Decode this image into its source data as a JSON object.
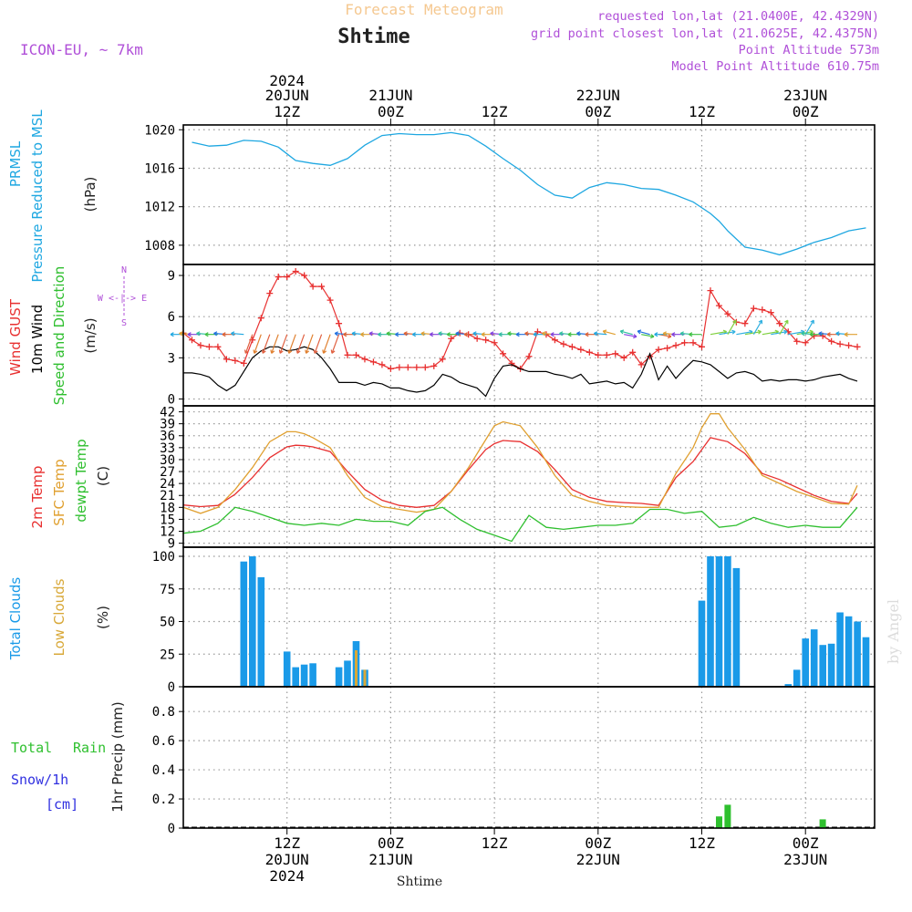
{
  "header": {
    "title": "Forecast Meteogram",
    "station": "Shtime",
    "model": "ICON-EU, ~ 7km",
    "requested": "requested lon,lat (21.0400E, 42.4329N)",
    "gridpoint": "grid point closest lon,lat (21.0625E, 42.4375N)",
    "point_alt": "Point Altitude 573m",
    "model_alt": "Model Point Altitude 610.75m",
    "credit": "by Angel",
    "footer": "Shtime"
  },
  "time_axis": {
    "top_labels": [
      {
        "l1": "2024",
        "l2": "20JUN",
        "l3": "12Z"
      },
      {
        "l1": "",
        "l2": "21JUN",
        "l3": "00Z"
      },
      {
        "l1": "",
        "l2": "",
        "l3": "12Z"
      },
      {
        "l1": "",
        "l2": "22JUN",
        "l3": "00Z"
      },
      {
        "l1": "",
        "l2": "",
        "l3": "12Z"
      },
      {
        "l1": "",
        "l2": "23JUN",
        "l3": "00Z"
      }
    ],
    "bottom_labels": [
      {
        "l1": "12Z",
        "l2": "20JUN",
        "l3": "2024"
      },
      {
        "l1": "00Z",
        "l2": "21JUN",
        "l3": ""
      },
      {
        "l1": "12Z",
        "l2": "",
        "l3": ""
      },
      {
        "l1": "00Z",
        "l2": "22JUN",
        "l3": ""
      },
      {
        "l1": "12Z",
        "l2": "",
        "l3": ""
      },
      {
        "l1": "00Z",
        "l2": "23JUN",
        "l3": ""
      }
    ],
    "tick_hours": [
      12,
      24,
      36,
      48,
      60,
      72
    ]
  },
  "panels": {
    "pressure": {
      "label1": "PRMSL",
      "label2": "Pressure Reduced to MSL",
      "unit": "(hPa)",
      "ticks": [
        "1008",
        "1012",
        "1016",
        "1020"
      ]
    },
    "wind": {
      "label_gust": "Wind GUST",
      "label_wind": "10m Wind",
      "label_speed": "Speed and Direction",
      "unit": "(m/s)",
      "ticks": [
        "0",
        "3",
        "6",
        "9"
      ],
      "compass": {
        "n": "N",
        "w": "W <-|-> E",
        "s": "S"
      }
    },
    "temp": {
      "label_t2m": "2m Temp",
      "label_sfc": "SFC Temp",
      "label_dew": "dewpt Temp",
      "unit": "(C)",
      "ticks": [
        "9",
        "12",
        "15",
        "18",
        "21",
        "24",
        "27",
        "30",
        "33",
        "36",
        "39",
        "42"
      ]
    },
    "clouds": {
      "label_total": "Total Clouds",
      "label_low": "Low Clouds",
      "unit": "(%)",
      "ticks": [
        "0",
        "25",
        "50",
        "75",
        "100"
      ]
    },
    "precip": {
      "label_total": "Total",
      "label_rain": "Rain",
      "label_snow": "Snow/1h",
      "label_cm": "[cm]",
      "label_axis": "1hr Precip (mm)",
      "ticks": [
        "0",
        "0.2",
        "0.4",
        "0.6",
        "0.8"
      ]
    }
  },
  "colors": {
    "pressure": "#1ea7e1",
    "gust": "#e83030",
    "wind": "#000000",
    "t2m": "#e83030",
    "sfc": "#e0a030",
    "dew": "#2fbf2f",
    "total_clouds": "#1a9ae8",
    "low_clouds": "#d8a838",
    "rain": "#2fc02f",
    "snow": "#3030e0",
    "title": "#f5c890",
    "magenta": "#b050d8"
  },
  "chart_data": [
    {
      "type": "line",
      "ylabel": "(hPa)",
      "ylim": [
        1006,
        1020.5
      ],
      "x_unit": "hours from 20JUN 00Z",
      "series": [
        {
          "name": "PRMSL",
          "x": [
            1,
            3,
            5,
            7,
            9,
            11,
            12,
            13,
            15,
            17,
            19,
            21,
            23,
            25,
            27,
            29,
            31,
            33,
            35,
            37,
            39,
            41,
            43,
            45,
            47,
            49,
            51,
            53,
            55,
            57,
            59,
            61,
            62,
            63,
            65,
            67,
            69,
            71,
            73,
            75,
            77,
            79
          ],
          "values": [
            1018.7,
            1018.3,
            1018.4,
            1018.9,
            1018.8,
            1018.2,
            1017.5,
            1016.8,
            1016.5,
            1016.3,
            1017.0,
            1018.4,
            1019.4,
            1019.6,
            1019.5,
            1019.5,
            1019.7,
            1019.4,
            1018.3,
            1017.0,
            1015.8,
            1014.3,
            1013.2,
            1012.9,
            1014.0,
            1014.5,
            1014.3,
            1013.9,
            1013.8,
            1013.2,
            1012.5,
            1011.3,
            1010.5,
            1009.5,
            1007.8,
            1007.5,
            1007.0,
            1007.6,
            1008.3,
            1008.8,
            1009.5,
            1009.8
          ]
        }
      ]
    },
    {
      "type": "line",
      "ylabel": "(m/s)",
      "ylim": [
        -0.5,
        9.8
      ],
      "series": [
        {
          "name": "Wind GUST",
          "x": [
            0,
            1,
            2,
            3,
            4,
            5,
            6,
            7,
            8,
            9,
            10,
            11,
            12,
            13,
            14,
            15,
            16,
            17,
            18,
            19,
            20,
            21,
            22,
            23,
            24,
            25,
            26,
            27,
            28,
            29,
            30,
            31,
            32,
            33,
            34,
            35,
            36,
            37,
            38,
            39,
            40,
            41,
            42,
            43,
            44,
            45,
            46,
            47,
            48,
            49,
            50,
            51,
            52,
            53,
            54,
            55,
            56,
            57,
            58,
            59,
            60,
            61,
            62,
            63,
            64,
            65,
            66,
            67,
            68,
            69,
            70,
            71,
            72,
            73,
            74,
            75,
            76,
            77,
            78
          ],
          "values": [
            4.8,
            4.3,
            3.9,
            3.8,
            3.8,
            2.9,
            2.8,
            2.6,
            4.3,
            5.9,
            7.7,
            8.9,
            8.9,
            9.3,
            9.0,
            8.2,
            8.2,
            7.2,
            5.5,
            3.2,
            3.2,
            2.9,
            2.7,
            2.5,
            2.2,
            2.3,
            2.3,
            2.3,
            2.3,
            2.4,
            2.9,
            4.4,
            4.8,
            4.7,
            4.4,
            4.3,
            4.1,
            3.3,
            2.6,
            2.2,
            3.1,
            4.9,
            4.7,
            4.3,
            4.0,
            3.8,
            3.6,
            3.4,
            3.2,
            3.2,
            3.3,
            3.0,
            3.4,
            2.5,
            3.1,
            3.6,
            3.7,
            3.9,
            4.1,
            4.1,
            3.8,
            7.9,
            6.8,
            6.2,
            5.6,
            5.5,
            6.6,
            6.5,
            6.3,
            5.5,
            4.9,
            4.2,
            4.1,
            4.6,
            4.6,
            4.2,
            4.0,
            3.9,
            3.8
          ]
        },
        {
          "name": "10m Wind",
          "x": [
            0,
            1,
            2,
            3,
            4,
            5,
            6,
            7,
            8,
            9,
            10,
            11,
            12,
            13,
            14,
            15,
            16,
            17,
            18,
            19,
            20,
            21,
            22,
            23,
            24,
            25,
            26,
            27,
            28,
            29,
            30,
            31,
            32,
            33,
            34,
            35,
            36,
            37,
            38,
            39,
            40,
            41,
            42,
            43,
            44,
            45,
            46,
            47,
            48,
            49,
            50,
            51,
            52,
            53,
            54,
            55,
            56,
            57,
            58,
            59,
            60,
            61,
            62,
            63,
            64,
            65,
            66,
            67,
            68,
            69,
            70,
            71,
            72,
            73,
            74,
            75,
            76,
            77,
            78
          ],
          "values": [
            1.9,
            1.9,
            1.8,
            1.6,
            1.0,
            0.6,
            1.0,
            2.0,
            3.0,
            3.5,
            3.8,
            3.8,
            3.5,
            3.6,
            3.8,
            3.6,
            3.0,
            2.2,
            1.2,
            1.2,
            1.2,
            1.0,
            1.2,
            1.1,
            0.8,
            0.8,
            0.6,
            0.5,
            0.6,
            1.0,
            1.8,
            1.6,
            1.2,
            1.0,
            0.8,
            0.2,
            1.5,
            2.4,
            2.5,
            2.2,
            2.0,
            2.0,
            2.0,
            1.8,
            1.7,
            1.5,
            1.8,
            1.1,
            1.2,
            1.3,
            1.1,
            1.2,
            0.8,
            1.8,
            3.3,
            1.4,
            2.4,
            1.5,
            2.2,
            2.8,
            2.7,
            2.5,
            2.0,
            1.5,
            1.9,
            2.0,
            1.8,
            1.3,
            1.4,
            1.3,
            1.4,
            1.4,
            1.3,
            1.4,
            1.6,
            1.7,
            1.8,
            1.5,
            1.3
          ]
        }
      ]
    },
    {
      "type": "line",
      "ylabel": "(C)",
      "ylim": [
        8,
        43.5
      ],
      "series": [
        {
          "name": "2m Temp",
          "x": [
            0,
            2,
            4,
            6,
            8,
            10,
            12,
            13,
            14,
            15,
            17,
            19,
            21,
            23,
            25,
            27,
            29,
            31,
            33,
            35,
            36,
            37,
            39,
            41,
            43,
            45,
            47,
            49,
            51,
            53,
            55,
            57,
            59,
            60,
            61,
            62,
            63,
            65,
            67,
            69,
            71,
            73,
            75,
            77,
            78
          ],
          "values": [
            18.6,
            18.2,
            18.5,
            21.3,
            25.5,
            30.5,
            33.2,
            33.6,
            33.5,
            33.2,
            32,
            27,
            22.5,
            19.8,
            18.5,
            18.0,
            18.5,
            22,
            27.5,
            32.5,
            34,
            34.8,
            34.5,
            32,
            27.5,
            22.5,
            20.5,
            19.5,
            19.2,
            19.0,
            18.5,
            25.5,
            29.5,
            32.5,
            35.5,
            35.0,
            34.5,
            31.5,
            26.5,
            25,
            23,
            21,
            19.5,
            19,
            21.5
          ]
        },
        {
          "name": "SFC Temp",
          "x": [
            0,
            2,
            4,
            6,
            8,
            10,
            12,
            13,
            14,
            15,
            17,
            19,
            21,
            23,
            25,
            27,
            29,
            31,
            33,
            35,
            36,
            37,
            39,
            41,
            43,
            45,
            47,
            49,
            51,
            53,
            55,
            57,
            59,
            60,
            61,
            62,
            63,
            65,
            67,
            69,
            71,
            73,
            75,
            77,
            78
          ],
          "values": [
            18.0,
            16.5,
            18.0,
            22.5,
            28.0,
            34.5,
            37.0,
            37.0,
            36.5,
            35.5,
            33,
            26,
            20.5,
            18.2,
            17.5,
            16.8,
            17.5,
            22,
            28,
            35,
            38.5,
            39.5,
            38.5,
            33,
            26,
            21,
            19.5,
            18.5,
            18.2,
            18.0,
            18.0,
            26.5,
            33,
            38,
            41.5,
            41.5,
            38,
            32.5,
            26,
            24,
            22,
            20.5,
            19,
            18.8,
            23.5
          ]
        },
        {
          "name": "dewpt Temp",
          "x": [
            0,
            2,
            4,
            6,
            8,
            10,
            12,
            14,
            16,
            18,
            20,
            22,
            24,
            26,
            28,
            30,
            32,
            34,
            36,
            38,
            40,
            42,
            44,
            46,
            48,
            50,
            52,
            54,
            56,
            58,
            60,
            62,
            64,
            66,
            68,
            70,
            72,
            74,
            76,
            78
          ],
          "values": [
            11.5,
            12,
            14,
            18,
            17,
            15.5,
            14,
            13.5,
            14,
            13.5,
            15,
            14.5,
            14.5,
            13.5,
            17,
            18,
            15,
            12.5,
            11,
            9.5,
            16,
            13,
            12.5,
            13,
            13.5,
            13.5,
            14,
            17.5,
            17.5,
            16.5,
            17,
            13,
            13.5,
            15.5,
            14,
            13,
            13.5,
            13,
            13,
            18
          ]
        }
      ]
    },
    {
      "type": "bar",
      "ylabel": "(%)",
      "ylim": [
        0,
        107
      ],
      "series": [
        {
          "name": "Total Clouds",
          "x": [
            7,
            8,
            9,
            12,
            13,
            14,
            15,
            18,
            19,
            20,
            21,
            60,
            61,
            62,
            63,
            64,
            70,
            71,
            72,
            73,
            74,
            75,
            76,
            77,
            78,
            79
          ],
          "values": [
            96,
            100,
            84,
            27,
            15,
            17,
            18,
            15,
            20,
            35,
            13,
            66,
            100,
            100,
            100,
            91,
            2,
            13,
            37,
            44,
            32,
            33,
            57,
            54,
            50,
            38
          ]
        },
        {
          "name": "Low Clouds",
          "x": [
            20,
            21
          ],
          "values": [
            28,
            13
          ]
        }
      ]
    },
    {
      "type": "bar",
      "ylabel": "1hr Precip (mm)",
      "ylim": [
        0,
        0.97
      ],
      "series": [
        {
          "name": "Total Rain",
          "x": [
            62,
            63,
            74
          ],
          "values": [
            0.08,
            0.16,
            0.06
          ]
        },
        {
          "name": "Snow/1h",
          "x": [],
          "values": []
        }
      ]
    }
  ]
}
